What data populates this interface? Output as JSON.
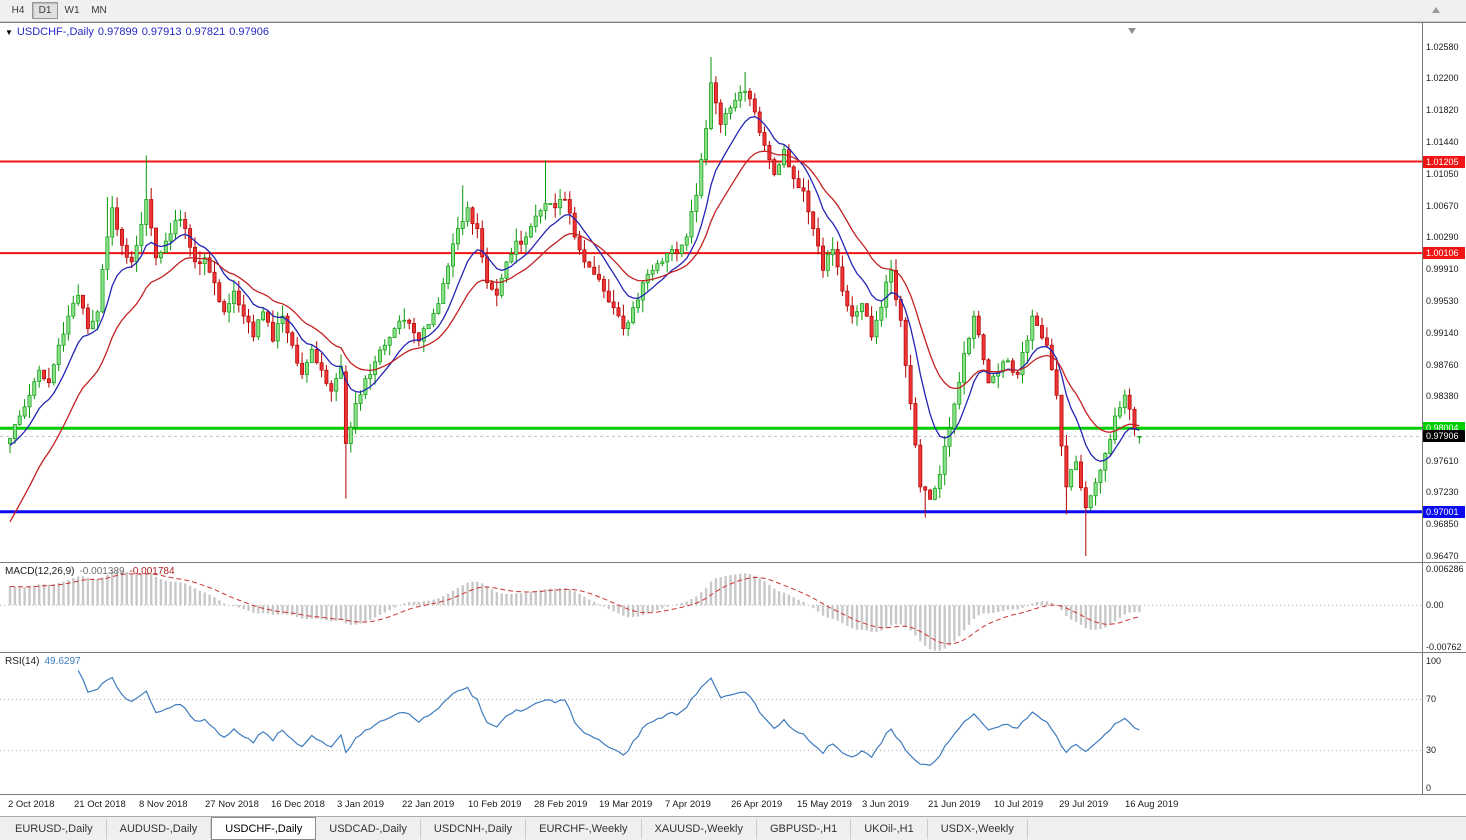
{
  "toolbar": {
    "timeframes": [
      {
        "label": "H4",
        "active": false
      },
      {
        "label": "D1",
        "active": true
      },
      {
        "label": "W1",
        "active": false
      },
      {
        "label": "MN",
        "active": false
      }
    ]
  },
  "chart_header": {
    "dropdown_icon": "▼",
    "symbol": "USDCHF-,Daily",
    "open": "0.97899",
    "high": "0.97913",
    "low": "0.97821",
    "close": "0.97906"
  },
  "price_axis_labels": [
    "1.02580",
    "1.02200",
    "1.01820",
    "1.01440",
    "1.01050",
    "1.00670",
    "1.00290",
    "0.99910",
    "0.99530",
    "0.99140",
    "0.98760",
    "0.98380",
    "0.97610",
    "0.97230",
    "0.96850",
    "0.96470"
  ],
  "hlines": [
    {
      "price": 1.01205,
      "label": "1.01205",
      "color": "#f01414",
      "width": 2
    },
    {
      "price": 1.00106,
      "label": "1.00106",
      "color": "#f01414",
      "width": 2
    },
    {
      "price": 0.98004,
      "label": "0.98004",
      "color": "#00ce00",
      "width": 3
    },
    {
      "price": 0.97001,
      "label": "0.97001",
      "color": "#0a0af0",
      "width": 3
    }
  ],
  "current_price": {
    "label": "0.97906",
    "value": 0.97906
  },
  "indicators": {
    "macd": {
      "name": "MACD(12,26,9)",
      "main_value": "-0.001389",
      "signal_value": "-0.001784",
      "axis_labels": [
        "0.006286",
        "0.00",
        "-0.00762"
      ],
      "axis_max": 0.006286,
      "axis_min": -0.00762,
      "fast": 12,
      "slow": 26,
      "signal": 9
    },
    "rsi": {
      "name": "RSI(14)",
      "value": "49.6297",
      "axis_labels": [
        "100",
        "70",
        "30",
        "0"
      ],
      "levels": [
        70,
        30
      ],
      "period": 14
    }
  },
  "date_axis": [
    "2 Oct 2018",
    "21 Oct 2018",
    "8 Nov 2018",
    "27 Nov 2018",
    "16 Dec 2018",
    "3 Jan 2019",
    "22 Jan 2019",
    "10 Feb 2019",
    "28 Feb 2019",
    "19 Mar 2019",
    "7 Apr 2019",
    "26 Apr 2019",
    "15 May 2019",
    "3 Jun 2019",
    "21 Jun 2019",
    "10 Jul 2019",
    "29 Jul 2019",
    "16 Aug 2019"
  ],
  "tabs": [
    {
      "label": "EURUSD-,Daily",
      "active": false
    },
    {
      "label": "AUDUSD-,Daily",
      "active": false
    },
    {
      "label": "USDCHF-,Daily",
      "active": true
    },
    {
      "label": "USDCAD-,Daily",
      "active": false
    },
    {
      "label": "USDCNH-,Daily",
      "active": false
    },
    {
      "label": "EURCHF-,Weekly",
      "active": false
    },
    {
      "label": "XAUUSD-,Weekly",
      "active": false
    },
    {
      "label": "GBPUSD-,H1",
      "active": false
    },
    {
      "label": "UKOil-,H1",
      "active": false
    },
    {
      "label": "USDX-,Weekly",
      "active": false
    }
  ],
  "chart_data": {
    "type": "candlestick",
    "symbol": "USDCHF",
    "timeframe": "Daily",
    "candle_count": 233,
    "x_start": 10,
    "x_step": 4.868,
    "label_step": 13.5,
    "y_range": [
      0.9647,
      1.0258
    ],
    "seed": 20,
    "noise": 0.0013,
    "wick": 0.0015,
    "anchors": [
      [
        0,
        0.9788
      ],
      [
        2,
        0.9815
      ],
      [
        4,
        0.984
      ],
      [
        6,
        0.987
      ],
      [
        8,
        0.9855
      ],
      [
        10,
        0.99
      ],
      [
        12,
        0.9935
      ],
      [
        14,
        0.996
      ],
      [
        16,
        0.992
      ],
      [
        18,
        0.994
      ],
      [
        20,
        1.003
      ],
      [
        21,
        1.0065
      ],
      [
        23,
        1.002
      ],
      [
        25,
        1.0
      ],
      [
        27,
        1.0045
      ],
      [
        28,
        1.0075
      ],
      [
        30,
        1.0005
      ],
      [
        32,
        1.0025
      ],
      [
        34,
        1.005
      ],
      [
        36,
        1.004
      ],
      [
        38,
        1.0
      ],
      [
        40,
        1.0005
      ],
      [
        42,
        0.9975
      ],
      [
        44,
        0.994
      ],
      [
        46,
        0.9965
      ],
      [
        48,
        0.9935
      ],
      [
        50,
        0.991
      ],
      [
        52,
        0.994
      ],
      [
        54,
        0.9905
      ],
      [
        56,
        0.9935
      ],
      [
        58,
        0.99
      ],
      [
        60,
        0.9865
      ],
      [
        62,
        0.9895
      ],
      [
        64,
        0.987
      ],
      [
        66,
        0.9845
      ],
      [
        68,
        0.9875
      ],
      [
        69,
        0.9782
      ],
      [
        71,
        0.983
      ],
      [
        73,
        0.986
      ],
      [
        75,
        0.988
      ],
      [
        77,
        0.99
      ],
      [
        79,
        0.992
      ],
      [
        81,
        0.993
      ],
      [
        83,
        0.9915
      ],
      [
        84,
        0.9905
      ],
      [
        86,
        0.9925
      ],
      [
        88,
        0.995
      ],
      [
        90,
        0.9995
      ],
      [
        92,
        1.004
      ],
      [
        94,
        1.0065
      ],
      [
        96,
        1.004
      ],
      [
        98,
        0.9975
      ],
      [
        100,
        0.996
      ],
      [
        102,
        1.0
      ],
      [
        104,
        1.0025
      ],
      [
        106,
        1.003
      ],
      [
        108,
        1.0055
      ],
      [
        110,
        1.007
      ],
      [
        112,
        1.0065
      ],
      [
        114,
        1.0075
      ],
      [
        116,
        1.003
      ],
      [
        118,
        1.0
      ],
      [
        120,
        0.9985
      ],
      [
        122,
        0.9965
      ],
      [
        124,
        0.9945
      ],
      [
        126,
        0.992
      ],
      [
        128,
        0.9945
      ],
      [
        130,
        0.9975
      ],
      [
        132,
        0.999
      ],
      [
        134,
        1.0
      ],
      [
        136,
        1.0015
      ],
      [
        137,
        1.001
      ],
      [
        139,
        1.003
      ],
      [
        141,
        1.008
      ],
      [
        143,
        1.016
      ],
      [
        144,
        1.0215
      ],
      [
        146,
        1.0165
      ],
      [
        148,
        1.0185
      ],
      [
        151,
        1.0205
      ],
      [
        153,
        1.018
      ],
      [
        155,
        1.014
      ],
      [
        157,
        1.0105
      ],
      [
        159,
        1.0135
      ],
      [
        161,
        1.01
      ],
      [
        163,
        1.0085
      ],
      [
        165,
        1.004
      ],
      [
        167,
        0.999
      ],
      [
        169,
        1.0015
      ],
      [
        171,
        0.9965
      ],
      [
        173,
        0.9935
      ],
      [
        175,
        0.995
      ],
      [
        177,
        0.991
      ],
      [
        178,
        0.993
      ],
      [
        181,
        0.999
      ],
      [
        183,
        0.993
      ],
      [
        185,
        0.983
      ],
      [
        187,
        0.973
      ],
      [
        189,
        0.9715
      ],
      [
        191,
        0.9745
      ],
      [
        193,
        0.98
      ],
      [
        196,
        0.989
      ],
      [
        198,
        0.9935
      ],
      [
        201,
        0.9855
      ],
      [
        204,
        0.988
      ],
      [
        207,
        0.9865
      ],
      [
        210,
        0.9935
      ],
      [
        213,
        0.99
      ],
      [
        215,
        0.984
      ],
      [
        217,
        0.973
      ],
      [
        219,
        0.976
      ],
      [
        221,
        0.9705
      ],
      [
        223,
        0.9735
      ],
      [
        225,
        0.977
      ],
      [
        227,
        0.9815
      ],
      [
        229,
        0.984
      ],
      [
        231,
        0.98
      ],
      [
        232,
        0.97906
      ]
    ],
    "overrides": {
      "20": {
        "h": 1.0078
      },
      "28": {
        "h": 1.0128
      },
      "69": {
        "o": 0.9868,
        "h": 0.9876,
        "l": 0.9716,
        "c": 0.9782
      },
      "93": {
        "h": 1.0092
      },
      "110": {
        "h": 1.0122
      },
      "144": {
        "h": 1.0246
      },
      "151": {
        "h": 1.0228
      },
      "188": {
        "l": 0.9693
      },
      "217": {
        "l": 0.9697
      },
      "221": {
        "l": 0.9647
      },
      "232": {
        "o": 0.97899,
        "h": 0.97913,
        "l": 0.97821,
        "c": 0.97906
      }
    },
    "moving_averages": [
      {
        "period": 10,
        "seed_offset": -0.001,
        "color": "#2424b4"
      },
      {
        "period": 21,
        "seed_offset": -0.011,
        "color": "#c22222"
      }
    ],
    "macd_seed_offset": 0.0035,
    "colors": {
      "up_fill": "#8be08b",
      "up_stroke": "#089a08",
      "down_fill": "#ee3535",
      "down_stroke": "#b00000",
      "macd_hist": "#c8c8c8",
      "macd_signal": "#cc3333",
      "rsi_line": "#3e7cbf",
      "grid_dotted": "#b4b4b4",
      "bid_line": "#999999"
    }
  }
}
